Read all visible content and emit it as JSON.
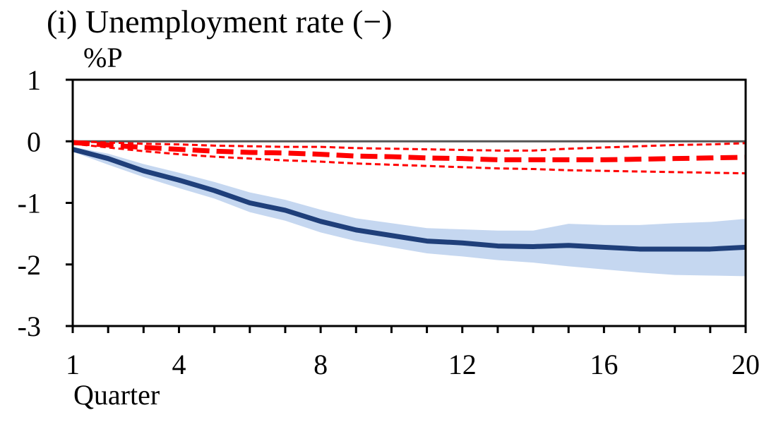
{
  "chart_data": {
    "type": "line",
    "title": "(i) Unemployment rate (−)",
    "ylabel": "%P",
    "xlabel": "Quarter",
    "x": [
      1,
      2,
      3,
      4,
      5,
      6,
      7,
      8,
      9,
      10,
      11,
      12,
      13,
      14,
      15,
      16,
      17,
      18,
      19,
      20
    ],
    "xticks": [
      1,
      4,
      8,
      12,
      16,
      20
    ],
    "ylim": [
      -3,
      1
    ],
    "yticks": [
      1,
      0,
      -1,
      -2,
      -3
    ],
    "ytick_labels": [
      "1",
      "0",
      "-1",
      "-2",
      "-3"
    ],
    "grid": false,
    "colors": {
      "main": "#1F3F7A",
      "band": "#C5D7F0",
      "alt": "#FF0000",
      "zero": "#555555"
    },
    "series": [
      {
        "style": "solid-thick",
        "values": [
          -0.13,
          -0.28,
          -0.48,
          -0.63,
          -0.8,
          -1.0,
          -1.12,
          -1.3,
          -1.44,
          -1.53,
          -1.62,
          -1.65,
          -1.7,
          -1.71,
          -1.69,
          -1.72,
          -1.75,
          -1.75,
          -1.75,
          -1.72
        ]
      },
      {
        "style": "band",
        "lower": [
          -0.17,
          -0.38,
          -0.58,
          -0.76,
          -0.93,
          -1.15,
          -1.29,
          -1.48,
          -1.62,
          -1.72,
          -1.82,
          -1.87,
          -1.93,
          -1.97,
          -2.03,
          -2.08,
          -2.13,
          -2.17,
          -2.18,
          -2.19
        ],
        "upper": [
          -0.09,
          -0.2,
          -0.37,
          -0.51,
          -0.66,
          -0.83,
          -0.95,
          -1.11,
          -1.25,
          -1.33,
          -1.41,
          -1.43,
          -1.45,
          -1.45,
          -1.34,
          -1.36,
          -1.36,
          -1.33,
          -1.31,
          -1.26
        ]
      },
      {
        "style": "dashed-thick",
        "values": [
          -0.02,
          -0.06,
          -0.1,
          -0.13,
          -0.16,
          -0.18,
          -0.19,
          -0.21,
          -0.24,
          -0.25,
          -0.27,
          -0.28,
          -0.3,
          -0.3,
          -0.3,
          -0.3,
          -0.29,
          -0.28,
          -0.27,
          -0.26
        ]
      },
      {
        "style": "dashed-thin",
        "values": [
          -0.04,
          -0.1,
          -0.16,
          -0.21,
          -0.25,
          -0.28,
          -0.31,
          -0.33,
          -0.36,
          -0.38,
          -0.4,
          -0.42,
          -0.44,
          -0.45,
          -0.47,
          -0.48,
          -0.49,
          -0.5,
          -0.51,
          -0.52
        ]
      },
      {
        "style": "dashed-thin",
        "values": [
          0.0,
          -0.02,
          -0.04,
          -0.05,
          -0.07,
          -0.08,
          -0.09,
          -0.09,
          -0.11,
          -0.12,
          -0.13,
          -0.14,
          -0.15,
          -0.15,
          -0.12,
          -0.1,
          -0.08,
          -0.06,
          -0.05,
          -0.03
        ]
      }
    ]
  }
}
